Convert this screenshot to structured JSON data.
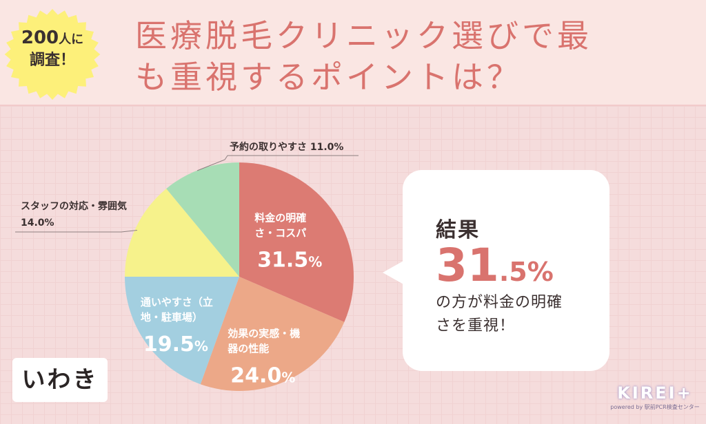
{
  "badge": {
    "line1_number": "200",
    "line1_suffix": "人に",
    "line2": "調査！"
  },
  "title": {
    "line1": "医療脱毛クリニック選びで最",
    "line2": "も重視するポイントは？"
  },
  "colors": {
    "accent": "#d9736e",
    "slice_price": "#dc7b73",
    "slice_effect": "#eca888",
    "slice_access": "#a3cfe0",
    "slice_staff": "#f6f28b",
    "slice_booking": "#a7ddb5"
  },
  "chart_data": {
    "type": "pie",
    "start": "top",
    "direction": "clockwise",
    "slices": [
      {
        "label_lines": [
          "料金の明確",
          "さ・コスパ"
        ],
        "value": 31.5,
        "value_text": "31.5",
        "unit": "%",
        "color": "#dc7b73",
        "label_position": "inside"
      },
      {
        "label_lines": [
          "効果の実感・機",
          "器の性能"
        ],
        "value": 24.0,
        "value_text": "24.0",
        "unit": "%",
        "color": "#eca888",
        "label_position": "inside"
      },
      {
        "label_lines": [
          "通いやすさ（立",
          "地・駐車場）"
        ],
        "value": 19.5,
        "value_text": "19.5",
        "unit": "%",
        "color": "#a3cfe0",
        "label_position": "inside"
      },
      {
        "label_lines": [
          "スタッフの対応・雰囲気",
          "14.0%"
        ],
        "value": 14.0,
        "value_text": "14.0",
        "unit": "%",
        "color": "#f6f28b",
        "label_position": "outside"
      },
      {
        "label_lines": [
          "予約の取りやすさ 11.0%"
        ],
        "value": 11.0,
        "value_text": "11.0",
        "unit": "%",
        "color": "#a7ddb5",
        "label_position": "outside"
      }
    ]
  },
  "result": {
    "title": "結果",
    "value_int": "31",
    "value_dec": ".5%",
    "line1": "の方が料金の明確",
    "line2": "さを重視！"
  },
  "region": "いわき",
  "logo": {
    "main": "KIREI+",
    "sub": "powered by 駅前PCR検査センター"
  }
}
